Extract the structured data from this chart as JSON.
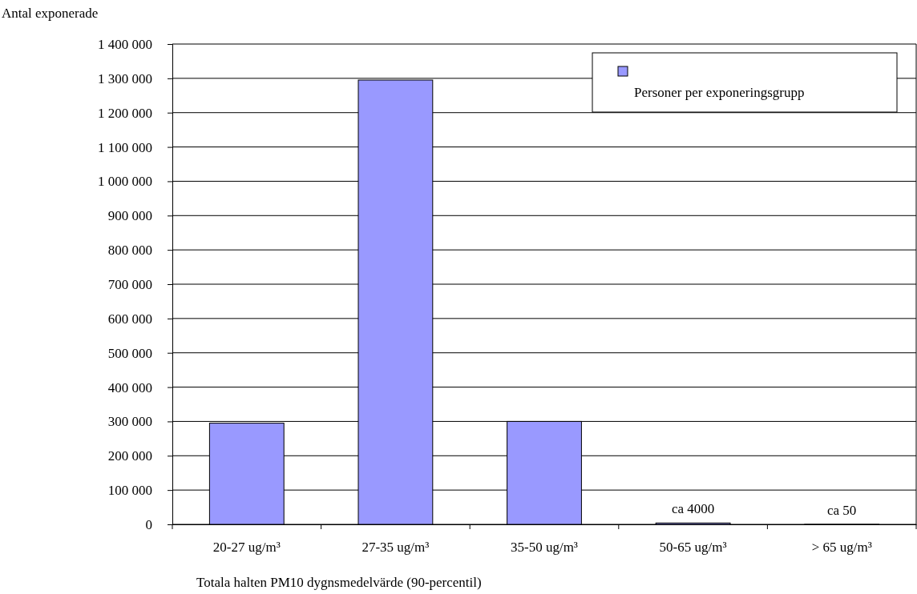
{
  "chart_data": {
    "type": "bar",
    "ylabel": "Antal exponerade",
    "xlabel": "Totala halten PM10 dygnsmedelvärde (90-percentil)",
    "categories": [
      "20-27 ug/m³",
      "27-35 ug/m³",
      "35-50 ug/m³",
      "50-65 ug/m³",
      "> 65 ug/m³"
    ],
    "series": [
      {
        "name": "Personer per exponeringsgrupp",
        "color": "#9999ff",
        "values": [
          295000,
          1295000,
          300000,
          4000,
          50
        ],
        "value_labels": [
          null,
          null,
          null,
          "ca 4000",
          "ca 50"
        ]
      }
    ],
    "ylim": [
      0,
      1400000
    ],
    "yticks": [
      {
        "value": 0,
        "label": "0"
      },
      {
        "value": 100000,
        "label": "100 000"
      },
      {
        "value": 200000,
        "label": "200 000"
      },
      {
        "value": 300000,
        "label": "300 000"
      },
      {
        "value": 400000,
        "label": "400 000"
      },
      {
        "value": 500000,
        "label": "500 000"
      },
      {
        "value": 600000,
        "label": "600 000"
      },
      {
        "value": 700000,
        "label": "700 000"
      },
      {
        "value": 800000,
        "label": "800 000"
      },
      {
        "value": 900000,
        "label": "900 000"
      },
      {
        "value": 1000000,
        "label": "1 000 000"
      },
      {
        "value": 1100000,
        "label": "1 100 000"
      },
      {
        "value": 1200000,
        "label": "1 200 000"
      },
      {
        "value": 1300000,
        "label": "1 300 000"
      },
      {
        "value": 1400000,
        "label": "1 400 000"
      }
    ],
    "grid": "y",
    "legend": "top right"
  }
}
